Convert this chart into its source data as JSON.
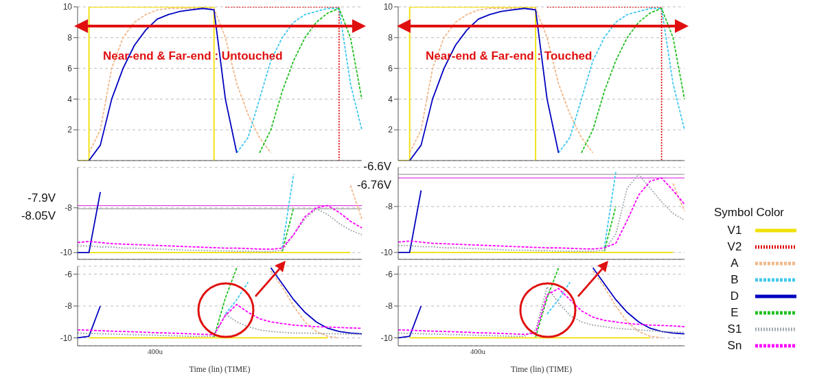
{
  "chart_data": [
    {
      "type": "line",
      "title": "Near-end & Far-end : Untouched",
      "categories": [
        null,
        null,
        null,
        null,
        null,
        null,
        null,
        null,
        null,
        null,
        null,
        null,
        null,
        null,
        null,
        null,
        null,
        null,
        null,
        null,
        null,
        null,
        null,
        null,
        null,
        null
      ],
      "ylim": [
        0,
        10
      ],
      "yticks": [
        2,
        4,
        6,
        8,
        10
      ],
      "grid": "y",
      "tick_labels": "y",
      "legend": "right",
      "legend_title": "Symbol Color",
      "series": [
        {
          "name": "V1",
          "type": "step",
          "color": "#f0e000",
          "line_style": "solid",
          "values": [
            0,
            10,
            10,
            10,
            10,
            10,
            10,
            10,
            10,
            10,
            10,
            10,
            0,
            null,
            null,
            null,
            null,
            null,
            null,
            null,
            null,
            null,
            null,
            null,
            null,
            null
          ]
        },
        {
          "name": "V2",
          "type": "step",
          "color": "#e00000",
          "line_style": "dotted",
          "values": [
            null,
            null,
            null,
            null,
            null,
            null,
            null,
            null,
            null,
            null,
            null,
            null,
            null,
            10,
            10,
            10,
            10,
            10,
            10,
            10,
            10,
            10,
            10,
            0,
            null,
            null
          ]
        },
        {
          "name": "A",
          "color": "#f2b88a",
          "line_style": "dashed",
          "values": [
            null,
            0.5,
            2,
            6,
            8,
            9,
            9.5,
            9.8,
            9.9,
            9.9,
            9.9,
            9.9,
            9.9,
            8,
            5,
            3,
            1.5,
            0.5,
            null,
            null,
            null,
            null,
            null,
            null,
            null,
            null
          ]
        },
        {
          "name": "B",
          "color": "#40c8f0",
          "line_style": "dashed",
          "values": [
            null,
            null,
            null,
            null,
            null,
            null,
            null,
            null,
            null,
            null,
            null,
            null,
            null,
            null,
            0.5,
            1.5,
            4,
            6.5,
            8,
            9,
            9.5,
            9.7,
            9.9,
            9.9,
            5,
            2
          ]
        },
        {
          "name": "D",
          "color": "#0000c0",
          "line_style": "solid",
          "values": [
            null,
            0,
            1,
            4,
            6,
            7.5,
            8.5,
            9.2,
            9.5,
            9.7,
            9.8,
            9.9,
            9.8,
            4,
            0.5,
            null,
            null,
            null,
            null,
            null,
            null,
            null,
            null,
            null,
            null,
            null
          ]
        },
        {
          "name": "E",
          "color": "#20c020",
          "line_style": "dashed",
          "values": [
            null,
            null,
            null,
            null,
            null,
            null,
            null,
            null,
            null,
            null,
            null,
            null,
            null,
            null,
            null,
            null,
            0.5,
            2,
            4.5,
            6.5,
            8,
            9,
            9.6,
            9.9,
            8,
            4
          ]
        }
      ]
    },
    {
      "type": "line",
      "categories": [
        null,
        null,
        null,
        null,
        null,
        null,
        null,
        null,
        null,
        null,
        null,
        null,
        null,
        null,
        null,
        null,
        null,
        null,
        null,
        null,
        null,
        null,
        null,
        null,
        null,
        null
      ],
      "ylim": [
        -10.3,
        -6.2
      ],
      "yticks": [
        -10,
        -8
      ],
      "grid": "y",
      "tick_labels": "y",
      "ref_lines": [
        {
          "axis": "y",
          "value": -7.9,
          "label": "-7.9V",
          "color": "#e040e0"
        },
        {
          "axis": "y",
          "value": -8.05,
          "label": "-8.05V",
          "color": "#a0a0a0"
        }
      ],
      "series": [
        {
          "color": "#f0e000",
          "line_style": "solid",
          "values": [
            null,
            -10,
            -10,
            -10,
            -10,
            -10,
            -10,
            -10,
            -10,
            -10,
            -10,
            -10,
            -10,
            -10,
            -10,
            -10,
            -10,
            -10,
            -10,
            -10,
            -10,
            -10,
            -10,
            -10,
            -10,
            null
          ]
        },
        {
          "color": "#f2b88a",
          "line_style": "dashed",
          "values": [
            null,
            null,
            null,
            null,
            null,
            null,
            null,
            null,
            null,
            null,
            null,
            null,
            null,
            null,
            null,
            null,
            null,
            null,
            null,
            null,
            null,
            null,
            null,
            null,
            -7,
            -8.5
          ]
        },
        {
          "color": "#40c8f0",
          "line_style": "dashed",
          "values": [
            null,
            null,
            null,
            null,
            null,
            null,
            null,
            null,
            null,
            null,
            null,
            null,
            null,
            null,
            null,
            null,
            null,
            null,
            -9.8,
            -6.5,
            null,
            null,
            null,
            null,
            null,
            null
          ]
        },
        {
          "color": "#0000c0",
          "line_style": "solid",
          "values": [
            -10,
            -10,
            -7.3,
            null,
            null,
            null,
            null,
            null,
            null,
            null,
            null,
            null,
            null,
            null,
            null,
            null,
            null,
            null,
            null,
            null,
            null,
            null,
            null,
            null,
            null,
            null
          ]
        },
        {
          "color": "#20c020",
          "line_style": "dashed",
          "values": [
            null,
            null,
            null,
            null,
            null,
            null,
            null,
            null,
            null,
            null,
            null,
            null,
            null,
            null,
            null,
            null,
            null,
            null,
            -9.95,
            -8,
            null,
            null,
            null,
            null,
            null,
            null
          ]
        },
        {
          "name": "S1",
          "color": "#a0a8b0",
          "line_style": "dotted",
          "values": [
            -9.7,
            -9.7,
            -9.75,
            -9.75,
            -9.8,
            -9.8,
            -9.82,
            -9.84,
            -9.86,
            -9.88,
            -9.9,
            -9.9,
            -9.92,
            -9.92,
            -9.94,
            -9.94,
            -9.95,
            -9.95,
            -9.9,
            -9.2,
            -8.5,
            -8.05,
            -8.3,
            -8.7,
            -9,
            -9.2
          ]
        },
        {
          "name": "Sn",
          "color": "#ff00ff",
          "line_style": "dashed",
          "values": [
            -9.55,
            -9.5,
            -9.55,
            -9.6,
            -9.62,
            -9.64,
            -9.66,
            -9.68,
            -9.7,
            -9.72,
            -9.74,
            -9.76,
            -9.78,
            -9.8,
            -9.8,
            -9.82,
            -9.84,
            -9.85,
            -9.8,
            -9.2,
            -8.4,
            -8,
            -7.9,
            -8.2,
            -8.6,
            -8.9
          ]
        }
      ]
    },
    {
      "type": "line",
      "categories": [
        null,
        null,
        null,
        null,
        null,
        null,
        null,
        null,
        null,
        null,
        null,
        null,
        null,
        null,
        null,
        null,
        null,
        null,
        null,
        null,
        null,
        null,
        null,
        null,
        null,
        null
      ],
      "ylim": [
        -10.5,
        -5.5
      ],
      "yticks": [
        -10,
        -8,
        -6
      ],
      "grid": "y",
      "tick_labels": "y",
      "xlabel": "Time (lin) (TIME)",
      "annotations": [
        "400u"
      ],
      "series": [
        {
          "color": "#f0e000",
          "line_style": "solid",
          "values": [
            null,
            -10,
            -10,
            -10,
            -10,
            -10,
            -10,
            -10,
            -10,
            -10,
            -10,
            -10,
            -10,
            -10,
            -10,
            -10,
            -10,
            -10,
            -10,
            -10,
            -10,
            -10,
            -10,
            null,
            null,
            null
          ]
        },
        {
          "color": "#f2b88a",
          "line_style": "dashed",
          "values": [
            null,
            null,
            null,
            null,
            null,
            null,
            null,
            null,
            null,
            null,
            null,
            null,
            null,
            null,
            null,
            null,
            null,
            -5.8,
            -6.8,
            -8,
            -9,
            -9.6,
            -9.9,
            -10,
            null,
            null
          ]
        },
        {
          "color": "#40c8f0",
          "line_style": "dashed",
          "values": [
            null,
            null,
            null,
            null,
            null,
            null,
            null,
            null,
            null,
            null,
            null,
            null,
            null,
            -8.5,
            -7.6,
            -6.5,
            null,
            null,
            null,
            null,
            null,
            null,
            null,
            null,
            null,
            null
          ]
        },
        {
          "color": "#0000c0",
          "line_style": "solid",
          "values": [
            -10,
            -9.9,
            -8,
            null,
            null,
            null,
            null,
            null,
            null,
            null,
            null,
            null,
            null,
            null,
            null,
            null,
            null,
            -5.6,
            -6.6,
            -7.6,
            -8.4,
            -9,
            -9.4,
            -9.6,
            -9.7,
            -9.75
          ]
        },
        {
          "color": "#20c020",
          "line_style": "dashed",
          "values": [
            null,
            null,
            null,
            null,
            null,
            null,
            null,
            null,
            null,
            null,
            null,
            null,
            -9.95,
            -7.5,
            -5.6,
            null,
            null,
            null,
            null,
            null,
            null,
            null,
            null,
            null,
            null,
            null
          ]
        },
        {
          "color": "#a0a8b0",
          "line_style": "dotted",
          "values": [
            -9.7,
            -9.72,
            -9.74,
            -9.76,
            -9.78,
            -9.8,
            -9.82,
            -9.84,
            -9.86,
            -9.88,
            -9.9,
            -9.9,
            -9.9,
            -8.5,
            -9,
            -9.3,
            -9.5,
            -9.6,
            -9.65,
            -9.7,
            -9.7,
            -9.72,
            -9.74,
            -9.75,
            -9.76,
            -9.78
          ]
        },
        {
          "color": "#ff00ff",
          "line_style": "dashed",
          "values": [
            -9.5,
            -9.52,
            -9.55,
            -9.58,
            -9.6,
            -9.62,
            -9.65,
            -9.68,
            -9.7,
            -9.72,
            -9.75,
            -9.78,
            -9.8,
            -8.6,
            -7.9,
            -8.4,
            -8.8,
            -9,
            -9.1,
            -9.2,
            -9.25,
            -9.3,
            -9.32,
            -9.35,
            -9.38,
            -9.4
          ]
        }
      ]
    },
    {
      "type": "line",
      "title": "Near-end & Far-end : Touched",
      "categories": [
        null,
        null,
        null,
        null,
        null,
        null,
        null,
        null,
        null,
        null,
        null,
        null,
        null,
        null,
        null,
        null,
        null,
        null,
        null,
        null,
        null,
        null,
        null,
        null,
        null,
        null
      ],
      "ylim": [
        0,
        10
      ],
      "yticks": [
        2,
        4,
        6,
        8,
        10
      ],
      "grid": "y",
      "tick_labels": "y",
      "series": [
        {
          "type": "step",
          "color": "#f0e000",
          "line_style": "solid",
          "values": [
            0,
            10,
            10,
            10,
            10,
            10,
            10,
            10,
            10,
            10,
            10,
            10,
            0,
            null,
            null,
            null,
            null,
            null,
            null,
            null,
            null,
            null,
            null,
            null,
            null,
            null
          ]
        },
        {
          "type": "step",
          "color": "#e00000",
          "line_style": "dotted",
          "values": [
            null,
            null,
            null,
            null,
            null,
            null,
            null,
            null,
            null,
            null,
            null,
            null,
            null,
            10,
            10,
            10,
            10,
            10,
            10,
            10,
            10,
            10,
            10,
            0,
            null,
            null
          ]
        },
        {
          "color": "#f2b88a",
          "line_style": "dashed",
          "values": [
            null,
            0.5,
            2,
            6,
            8,
            9,
            9.5,
            9.8,
            9.9,
            9.9,
            9.9,
            9.9,
            9.9,
            8,
            5,
            3,
            1.5,
            0.5,
            null,
            null,
            null,
            null,
            null,
            null,
            null,
            null
          ]
        },
        {
          "color": "#40c8f0",
          "line_style": "dashed",
          "values": [
            null,
            null,
            null,
            null,
            null,
            null,
            null,
            null,
            null,
            null,
            null,
            null,
            null,
            null,
            0.5,
            1.5,
            4,
            6.5,
            8,
            9,
            9.5,
            9.7,
            9.9,
            9.9,
            5,
            2
          ]
        },
        {
          "color": "#0000c0",
          "line_style": "solid",
          "values": [
            null,
            0,
            1,
            4,
            6,
            7.5,
            8.5,
            9.2,
            9.5,
            9.7,
            9.8,
            9.9,
            9.8,
            4,
            0.5,
            null,
            null,
            null,
            null,
            null,
            null,
            null,
            null,
            null,
            null,
            null
          ]
        },
        {
          "color": "#20c020",
          "line_style": "dashed",
          "values": [
            null,
            null,
            null,
            null,
            null,
            null,
            null,
            null,
            null,
            null,
            null,
            null,
            null,
            null,
            null,
            null,
            0.5,
            2,
            4.5,
            6.5,
            8,
            9,
            9.6,
            9.9,
            8,
            4
          ]
        }
      ]
    },
    {
      "type": "line",
      "categories": [
        null,
        null,
        null,
        null,
        null,
        null,
        null,
        null,
        null,
        null,
        null,
        null,
        null,
        null,
        null,
        null,
        null,
        null,
        null,
        null,
        null,
        null,
        null,
        null,
        null,
        null
      ],
      "ylim": [
        -10.3,
        -6.3
      ],
      "yticks": [
        -10,
        -8
      ],
      "grid": "y",
      "tick_labels": "y",
      "ref_lines": [
        {
          "axis": "y",
          "value": -6.6,
          "label": "-6.6V",
          "color": "#a0a0a0"
        },
        {
          "axis": "y",
          "value": -6.76,
          "label": "-6.76V",
          "color": "#e040e0"
        }
      ],
      "series": [
        {
          "color": "#f0e000",
          "line_style": "solid",
          "values": [
            null,
            -10,
            -10,
            -10,
            -10,
            -10,
            -10,
            -10,
            -10,
            -10,
            -10,
            -10,
            -10,
            -10,
            -10,
            -10,
            -10,
            -10,
            -10,
            -10,
            -10,
            -10,
            -10,
            -10,
            -10,
            null
          ]
        },
        {
          "color": "#f2b88a",
          "line_style": "dashed",
          "values": [
            null,
            null,
            null,
            null,
            null,
            null,
            null,
            null,
            null,
            null,
            null,
            null,
            null,
            null,
            null,
            null,
            null,
            null,
            null,
            null,
            null,
            null,
            null,
            null,
            -7,
            -8.2
          ]
        },
        {
          "color": "#40c8f0",
          "line_style": "dashed",
          "values": [
            null,
            null,
            null,
            null,
            null,
            null,
            null,
            null,
            null,
            null,
            null,
            null,
            null,
            null,
            null,
            null,
            null,
            null,
            -9.8,
            -6.5,
            null,
            null,
            null,
            null,
            null,
            null
          ]
        },
        {
          "color": "#0000c0",
          "line_style": "solid",
          "values": [
            -10,
            -10,
            -7.3,
            null,
            null,
            null,
            null,
            null,
            null,
            null,
            null,
            null,
            null,
            null,
            null,
            null,
            null,
            null,
            null,
            null,
            null,
            null,
            null,
            null,
            null,
            null
          ]
        },
        {
          "color": "#20c020",
          "line_style": "dashed",
          "values": [
            null,
            null,
            null,
            null,
            null,
            null,
            null,
            null,
            null,
            null,
            null,
            null,
            null,
            null,
            null,
            null,
            null,
            null,
            -9.95,
            -8,
            null,
            null,
            null,
            null,
            null,
            null
          ]
        },
        {
          "color": "#a0a8b0",
          "line_style": "dotted",
          "values": [
            -9.7,
            -9.7,
            -9.75,
            -9.75,
            -9.8,
            -9.8,
            -9.82,
            -9.84,
            -9.86,
            -9.88,
            -9.9,
            -9.9,
            -9.92,
            -9.92,
            -9.94,
            -9.94,
            -9.95,
            -9.95,
            -9.9,
            -9.2,
            -7.2,
            -6.6,
            -7.2,
            -7.8,
            -8.3,
            -8.6
          ]
        },
        {
          "color": "#ff00ff",
          "line_style": "dashed",
          "values": [
            -9.55,
            -9.5,
            -9.55,
            -9.6,
            -9.62,
            -9.64,
            -9.66,
            -9.68,
            -9.7,
            -9.72,
            -9.74,
            -9.76,
            -9.78,
            -9.8,
            -9.8,
            -9.82,
            -9.84,
            -9.85,
            -9.8,
            -9.6,
            -8.6,
            -7.5,
            -6.9,
            -6.76,
            -7.3,
            -7.9
          ]
        }
      ]
    },
    {
      "type": "line",
      "categories": [
        null,
        null,
        null,
        null,
        null,
        null,
        null,
        null,
        null,
        null,
        null,
        null,
        null,
        null,
        null,
        null,
        null,
        null,
        null,
        null,
        null,
        null,
        null,
        null,
        null,
        null
      ],
      "ylim": [
        -10.5,
        -5.5
      ],
      "yticks": [
        -10,
        -8,
        -6
      ],
      "grid": "y",
      "tick_labels": "y",
      "xlabel": "Time (lin) (TIME)",
      "annotations": [
        "400u"
      ],
      "series": [
        {
          "color": "#f0e000",
          "line_style": "solid",
          "values": [
            null,
            -10,
            -10,
            -10,
            -10,
            -10,
            -10,
            -10,
            -10,
            -10,
            -10,
            -10,
            -10,
            -10,
            -10,
            -10,
            -10,
            -10,
            -10,
            -10,
            -10,
            -10,
            -10,
            null,
            null,
            null
          ]
        },
        {
          "color": "#f2b88a",
          "line_style": "dashed",
          "values": [
            null,
            null,
            null,
            null,
            null,
            null,
            null,
            null,
            null,
            null,
            null,
            null,
            null,
            null,
            null,
            null,
            null,
            -5.8,
            -6.8,
            -8,
            -9,
            -9.6,
            -9.9,
            -10,
            null,
            null
          ]
        },
        {
          "color": "#40c8f0",
          "line_style": "dashed",
          "values": [
            null,
            null,
            null,
            null,
            null,
            null,
            null,
            null,
            null,
            null,
            null,
            null,
            null,
            -8.5,
            -7.6,
            -6.5,
            null,
            null,
            null,
            null,
            null,
            null,
            null,
            null,
            null,
            null
          ]
        },
        {
          "color": "#0000c0",
          "line_style": "solid",
          "values": [
            -10,
            -9.9,
            -8,
            null,
            null,
            null,
            null,
            null,
            null,
            null,
            null,
            null,
            null,
            null,
            null,
            null,
            null,
            -5.6,
            -6.6,
            -7.6,
            -8.4,
            -9,
            -9.4,
            -9.6,
            -9.7,
            -9.75
          ]
        },
        {
          "color": "#20c020",
          "line_style": "dashed",
          "values": [
            null,
            null,
            null,
            null,
            null,
            null,
            null,
            null,
            null,
            null,
            null,
            null,
            -9.95,
            -7.5,
            -5.6,
            null,
            null,
            null,
            null,
            null,
            null,
            null,
            null,
            null,
            null,
            null
          ]
        },
        {
          "color": "#a0a8b0",
          "line_style": "dotted",
          "values": [
            -9.7,
            -9.72,
            -9.74,
            -9.76,
            -9.78,
            -9.8,
            -9.82,
            -9.84,
            -9.86,
            -9.88,
            -9.9,
            -9.9,
            -9.5,
            -6.8,
            -7.8,
            -8.6,
            -9,
            -9.2,
            -9.3,
            -9.4,
            -9.45,
            -9.5,
            -9.55,
            -9.6,
            -9.62,
            -9.65
          ]
        },
        {
          "color": "#ff00ff",
          "line_style": "dashed",
          "values": [
            -9.5,
            -9.52,
            -9.55,
            -9.58,
            -9.6,
            -9.62,
            -9.65,
            -9.68,
            -9.7,
            -9.72,
            -9.75,
            -9.78,
            -9.7,
            -7.3,
            -6.9,
            -7.6,
            -8.3,
            -8.7,
            -8.9,
            -9,
            -9.1,
            -9.15,
            -9.2,
            -9.22,
            -9.25,
            -9.3
          ]
        }
      ]
    }
  ]
}
